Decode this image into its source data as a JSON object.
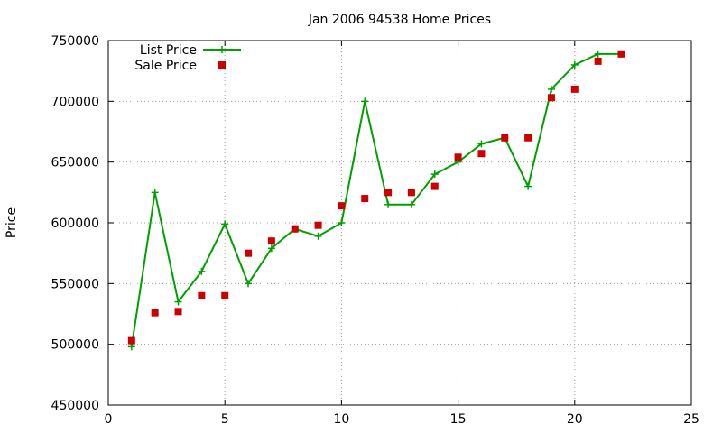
{
  "chart_data": {
    "type": "line",
    "title": "Jan 2006 94538 Home Prices",
    "xlabel": "",
    "ylabel": "Price",
    "xlim": [
      0,
      25
    ],
    "ylim": [
      450000,
      750000
    ],
    "xticks": [
      0,
      5,
      10,
      15,
      20,
      25
    ],
    "yticks": [
      450000,
      500000,
      550000,
      600000,
      650000,
      700000,
      750000
    ],
    "grid": true,
    "legend_position": "top-left",
    "series": [
      {
        "name": "List Price",
        "style": "line-plus",
        "color": "#00a000",
        "x": [
          1,
          2,
          3,
          4,
          5,
          6,
          7,
          8,
          9,
          10,
          11,
          12,
          13,
          14,
          15,
          16,
          17,
          18,
          19,
          20,
          21,
          22
        ],
        "y": [
          498000,
          625000,
          535000,
          560000,
          599000,
          550000,
          579000,
          595000,
          589000,
          600000,
          700000,
          615000,
          615000,
          640000,
          650000,
          665000,
          670000,
          630000,
          710000,
          730000,
          739000,
          739000
        ]
      },
      {
        "name": "Sale Price",
        "style": "square-points",
        "color": "#cc0000",
        "x": [
          1,
          2,
          3,
          4,
          5,
          6,
          7,
          8,
          9,
          10,
          11,
          12,
          13,
          14,
          15,
          16,
          17,
          18,
          19,
          20,
          21,
          22
        ],
        "y": [
          503000,
          526000,
          527000,
          540000,
          540000,
          575000,
          585000,
          595000,
          598000,
          614000,
          620000,
          625000,
          625000,
          630000,
          654000,
          657000,
          670000,
          670000,
          703000,
          710000,
          733000,
          739000
        ]
      }
    ]
  }
}
